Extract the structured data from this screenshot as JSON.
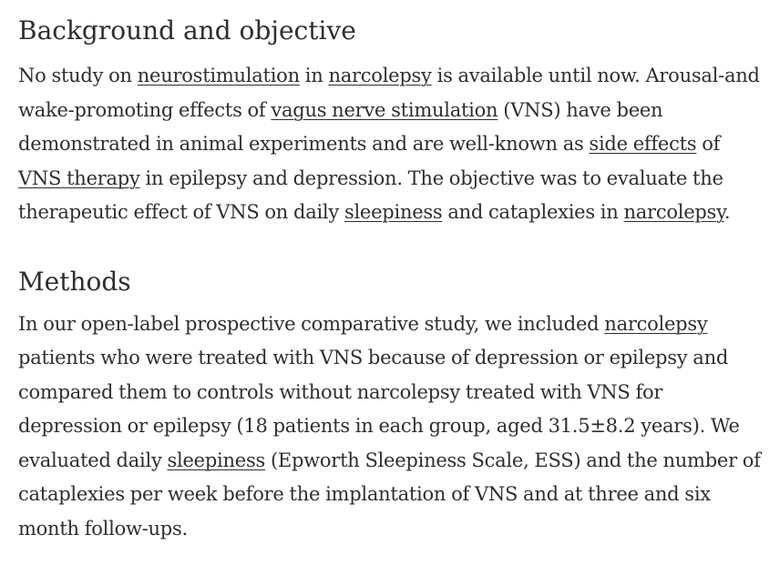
{
  "sections": [
    {
      "heading": "Background and objective",
      "segments": [
        {
          "text": "No study on "
        },
        {
          "text": "neurostimulation",
          "link": true
        },
        {
          "text": " in "
        },
        {
          "text": "narcolepsy",
          "link": true
        },
        {
          "text": " is available until now. Arousal-and wake-promoting effects of "
        },
        {
          "text": "vagus nerve stimulation",
          "link": true
        },
        {
          "text": " (VNS) have been demonstrated in animal experiments and are well-known as "
        },
        {
          "text": "side effects",
          "link": true
        },
        {
          "text": " of "
        },
        {
          "text": "VNS therapy",
          "link": true
        },
        {
          "text": " in epilepsy and depression. The objective was to evaluate the therapeutic effect of VNS on daily "
        },
        {
          "text": "sleepiness",
          "link": true
        },
        {
          "text": " and cataplexies in "
        },
        {
          "text": "narcolepsy",
          "link": true
        },
        {
          "text": "."
        }
      ]
    },
    {
      "heading": "Methods",
      "segments": [
        {
          "text": "In our open-label prospective comparative study, we included "
        },
        {
          "text": "narcolepsy",
          "link": true
        },
        {
          "text": " patients who were treated with VNS because of depression or epilepsy and compared them to controls without narcolepsy treated with VNS for depression or epilepsy (18 patients in each group, aged 31.5±8.2 years). We evaluated daily "
        },
        {
          "text": "sleepiness",
          "link": true
        },
        {
          "text": " (Epworth Sleepiness Scale, ESS) and the number of cataplexies per week before the implantation of VNS and at three and six month follow-ups."
        }
      ]
    }
  ]
}
